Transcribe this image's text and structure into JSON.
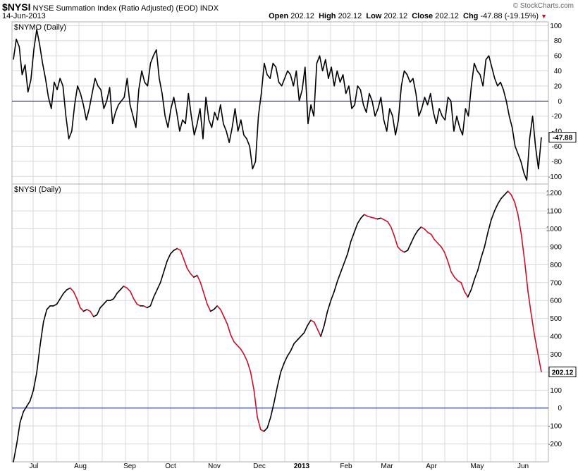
{
  "header": {
    "symbol": "$NYSI",
    "name": "NYSE Summation Index (Ratio Adjusted) (EOD)",
    "exchange": "INDX",
    "date": "14-Jun-2013",
    "watermark": "© StockCharts.com",
    "quote": {
      "open_label": "Open",
      "open": "202.12",
      "high_label": "High",
      "high": "202.12",
      "low_label": "Low",
      "low": "202.12",
      "close_label": "Close",
      "close": "202.12",
      "chg_label": "Chg",
      "chg": "-47.88 (-19.15%)"
    },
    "down_arrow": "▼"
  },
  "colors": {
    "line": "#000000",
    "down_line": "#c8102e",
    "zero_line": "#0a1e78",
    "grid": "#d9d9d9",
    "border": "#b0b0b0"
  },
  "chart_data": [
    {
      "type": "line",
      "title": "$NYMO (Daily)",
      "ylim": [
        -110,
        105
      ],
      "yticks": [
        100,
        80,
        60,
        40,
        20,
        0,
        -20,
        -40,
        -60,
        -80,
        -100
      ],
      "reference_line": 0,
      "last_value_label": "-47.88",
      "series": [
        {
          "values": [
            55,
            82,
            72,
            35,
            48,
            12,
            28,
            68,
            95,
            75,
            50,
            30,
            5,
            -10,
            25,
            15,
            30,
            20,
            -20,
            -50,
            -40,
            -5,
            20,
            10,
            -5,
            -25,
            -10,
            10,
            30,
            20,
            15,
            -10,
            0,
            18,
            -30,
            -15,
            -5,
            0,
            5,
            30,
            -5,
            -20,
            -35,
            15,
            40,
            25,
            20,
            50,
            60,
            68,
            30,
            10,
            -20,
            -35,
            -10,
            5,
            -15,
            -40,
            -25,
            -30,
            10,
            -20,
            -45,
            -30,
            -10,
            -50,
            5,
            -25,
            -35,
            -15,
            -25,
            -5,
            -30,
            -40,
            -55,
            -35,
            -10,
            -40,
            -25,
            -45,
            -50,
            -60,
            -90,
            -80,
            -20,
            10,
            50,
            35,
            30,
            50,
            45,
            25,
            20,
            30,
            40,
            35,
            20,
            40,
            0,
            15,
            45,
            -30,
            -5,
            -20,
            50,
            60,
            40,
            55,
            30,
            45,
            20,
            40,
            25,
            35,
            10,
            20,
            -10,
            -5,
            20,
            15,
            -5,
            -15,
            10,
            0,
            -20,
            -10,
            5,
            -25,
            -40,
            -10,
            -20,
            -45,
            -25,
            20,
            40,
            35,
            25,
            30,
            10,
            -20,
            -10,
            5,
            -5,
            10,
            -15,
            -30,
            -10,
            -20,
            -25,
            5,
            0,
            -40,
            -20,
            -35,
            -45,
            -10,
            -20,
            20,
            50,
            40,
            35,
            20,
            55,
            60,
            45,
            30,
            20,
            25,
            15,
            0,
            -20,
            -35,
            -60,
            -70,
            -80,
            -95,
            -105,
            -50,
            -20,
            -60,
            -90,
            -48
          ]
        }
      ]
    },
    {
      "type": "line",
      "title": "$NYSI (Daily)",
      "ylim": [
        -300,
        1250
      ],
      "yticks": [
        1200,
        1100,
        1000,
        900,
        800,
        700,
        600,
        500,
        400,
        300,
        200,
        100,
        0,
        -100,
        -200
      ],
      "reference_line": 0,
      "last_value_label": "202.12",
      "x_labels": [
        "Jul",
        "Aug",
        "Sep",
        "Oct",
        "Nov",
        "Dec",
        "2013",
        "Feb",
        "Mar",
        "Apr",
        "May",
        "Jun"
      ],
      "series": [
        {
          "values": [
            -300,
            -200,
            -80,
            -20,
            10,
            40,
            100,
            200,
            350,
            480,
            550,
            570,
            570,
            580,
            610,
            640,
            660,
            670,
            650,
            610,
            560,
            540,
            550,
            540,
            510,
            520,
            560,
            580,
            600,
            600,
            610,
            640,
            660,
            680,
            670,
            650,
            610,
            580,
            570,
            570,
            560,
            570,
            620,
            660,
            700,
            760,
            820,
            860,
            880,
            890,
            880,
            830,
            780,
            750,
            730,
            740,
            700,
            640,
            580,
            540,
            550,
            570,
            550,
            510,
            470,
            410,
            370,
            350,
            330,
            300,
            260,
            200,
            100,
            -50,
            -120,
            -130,
            -110,
            -50,
            30,
            120,
            200,
            250,
            290,
            320,
            360,
            380,
            400,
            420,
            460,
            490,
            480,
            440,
            400,
            460,
            540,
            600,
            650,
            710,
            760,
            810,
            860,
            930,
            980,
            1030,
            1060,
            1080,
            1070,
            1065,
            1060,
            1055,
            1060,
            1050,
            1040,
            1010,
            960,
            900,
            880,
            870,
            880,
            920,
            960,
            990,
            1010,
            1000,
            980,
            970,
            940,
            920,
            900,
            870,
            820,
            760,
            730,
            710,
            700,
            650,
            620,
            660,
            720,
            770,
            840,
            900,
            980,
            1050,
            1100,
            1140,
            1170,
            1190,
            1210,
            1190,
            1150,
            1080,
            970,
            820,
            650,
            520,
            400,
            300,
            202
          ]
        }
      ]
    }
  ]
}
